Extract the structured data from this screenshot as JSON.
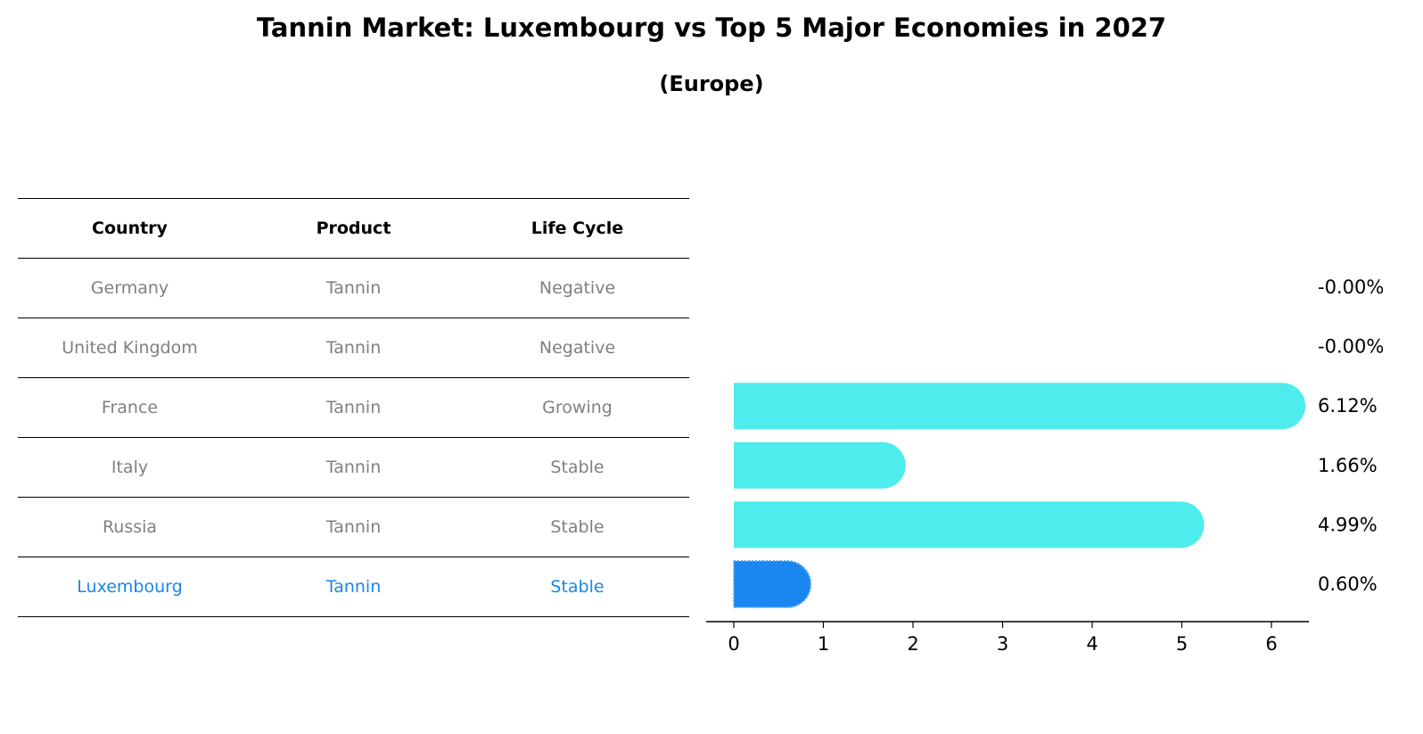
{
  "title": "Tannin Market: Luxembourg vs Top 5 Major Economies in 2027",
  "subtitle": "(Europe)",
  "table": {
    "headers": [
      "Country",
      "Product",
      "Life Cycle"
    ],
    "rows": [
      {
        "country": "Germany",
        "product": "Tannin",
        "life_cycle": "Negative"
      },
      {
        "country": "United Kingdom",
        "product": "Tannin",
        "life_cycle": "Negative"
      },
      {
        "country": "France",
        "product": "Tannin",
        "life_cycle": "Growing"
      },
      {
        "country": "Italy",
        "product": "Tannin",
        "life_cycle": "Stable"
      },
      {
        "country": "Russia",
        "product": "Tannin",
        "life_cycle": "Stable"
      },
      {
        "country": "Luxembourg",
        "product": "Tannin",
        "life_cycle": "Stable"
      }
    ]
  },
  "chart_data": {
    "type": "bar",
    "orientation": "horizontal",
    "categories": [
      "Germany",
      "United Kingdom",
      "France",
      "Italy",
      "Russia",
      "Luxembourg"
    ],
    "values": [
      -0.0,
      -0.0,
      6.12,
      1.66,
      4.99,
      0.6
    ],
    "value_labels": [
      "-0.00%",
      "-0.00%",
      "6.12%",
      "1.66%",
      "4.99%",
      "0.60%"
    ],
    "highlight_category": "Luxembourg",
    "xlim": [
      -0.3,
      6.45
    ],
    "xticks": [
      0,
      1,
      2,
      3,
      4,
      5,
      6
    ],
    "grid": false,
    "colors": {
      "default": "#4eecec",
      "highlight": "#1a86f0",
      "normal_text": "#808080",
      "highlight_text": "#1a86e8"
    }
  }
}
